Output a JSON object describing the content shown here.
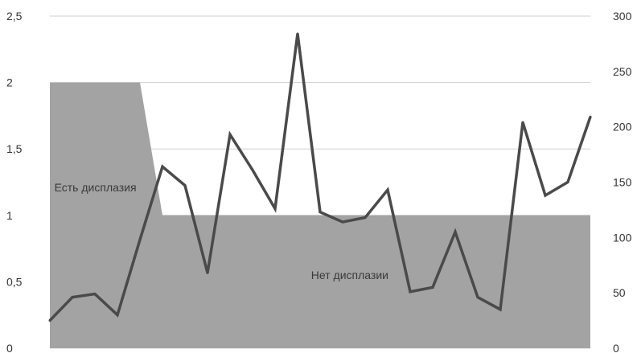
{
  "chart_data": {
    "type": "area+line",
    "title": "",
    "xlabel": "",
    "ylabel": "",
    "grid": true,
    "legend": "none",
    "y_left": {
      "lim": [
        0,
        2.5
      ],
      "ticks": [
        "0",
        "0,5",
        "1",
        "1,5",
        "2",
        "2,5"
      ],
      "tick_values": [
        0,
        0.5,
        1,
        1.5,
        2,
        2.5
      ]
    },
    "y_right": {
      "lim": [
        0,
        300
      ],
      "ticks": [
        "0",
        "50",
        "100",
        "150",
        "200",
        "250",
        "300"
      ],
      "tick_values": [
        0,
        50,
        100,
        150,
        200,
        250,
        300
      ]
    },
    "x_count": 25,
    "series": [
      {
        "axis": "left",
        "kind": "area",
        "color": "#a3a3a3",
        "values": [
          2,
          2,
          2,
          2,
          2,
          1,
          1,
          1,
          1,
          1,
          1,
          1,
          1,
          1,
          1,
          1,
          1,
          1,
          1,
          1,
          1,
          1,
          1,
          1,
          1
        ]
      },
      {
        "axis": "right",
        "kind": "line",
        "color": "#4a4a4a",
        "values": [
          25,
          46,
          49,
          30,
          98,
          164,
          147,
          68,
          193,
          161,
          126,
          284,
          123,
          114,
          118,
          143,
          51,
          55,
          105,
          46,
          35,
          204,
          138,
          150,
          209
        ]
      }
    ],
    "annotations": [
      {
        "text": "Есть дисплазия",
        "x_index": 0.2,
        "y_left": 1.18
      },
      {
        "text": "Нет дисплазии",
        "x_index": 11.6,
        "y_left": 0.52
      }
    ]
  }
}
